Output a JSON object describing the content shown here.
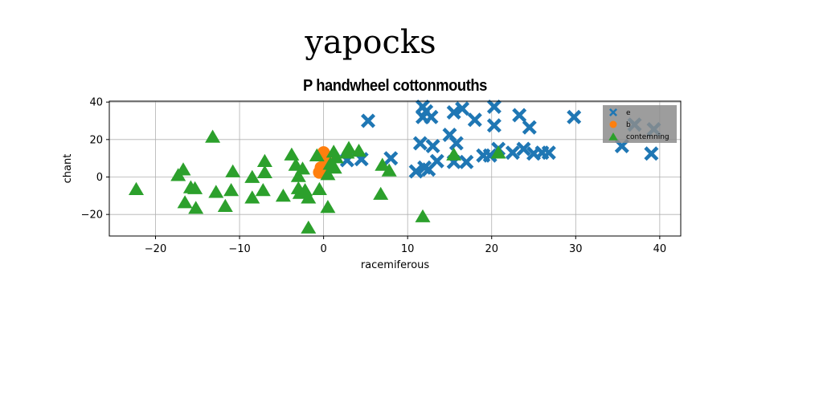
{
  "figure": {
    "suptitle": "yapocks"
  },
  "colors": {
    "e": "#1f77b4",
    "b": "#ff7f0e",
    "contemning": "#2ca02c",
    "grid": "#b0b0b0",
    "legend_bg": "#8c8c8c"
  },
  "chart_data": {
    "type": "scatter",
    "title": "P handwheel cottonmouths",
    "xlabel": "racemiferous",
    "ylabel": "chant",
    "xlim": [
      -25.5,
      42.5
    ],
    "ylim": [
      -31.5,
      40.5
    ],
    "xticks": [
      -20,
      -10,
      0,
      10,
      20,
      30,
      40
    ],
    "yticks": [
      -20,
      0,
      20,
      40
    ],
    "xtick_labels": [
      "−20",
      "−10",
      "0",
      "10",
      "20",
      "30",
      "40"
    ],
    "ytick_labels": [
      "−20",
      "0",
      "20",
      "40"
    ],
    "grid": true,
    "legend_position": "upper right",
    "series": [
      {
        "name": "e",
        "marker": "x-filled",
        "points": [
          [
            5.3,
            30
          ],
          [
            4.5,
            9.5
          ],
          [
            2.8,
            9
          ],
          [
            8,
            10
          ],
          [
            11,
            3
          ],
          [
            11.5,
            18
          ],
          [
            12,
            5
          ],
          [
            12.5,
            4
          ],
          [
            11.8,
            37.5
          ],
          [
            11.8,
            32
          ],
          [
            12.2,
            35
          ],
          [
            12.8,
            32
          ],
          [
            13,
            16.5
          ],
          [
            13.5,
            8.5
          ],
          [
            15,
            22.5
          ],
          [
            15.5,
            34.5
          ],
          [
            15.8,
            18
          ],
          [
            16.5,
            36.5
          ],
          [
            15.5,
            8
          ],
          [
            17,
            8
          ],
          [
            18,
            30.5
          ],
          [
            19,
            11.5
          ],
          [
            19.8,
            11.5
          ],
          [
            20.3,
            37.5
          ],
          [
            20.3,
            27.5
          ],
          [
            20.8,
            15
          ],
          [
            22.5,
            13
          ],
          [
            23.3,
            33
          ],
          [
            23.8,
            15
          ],
          [
            24.5,
            26.5
          ],
          [
            25,
            12.5
          ],
          [
            26,
            13
          ],
          [
            26.8,
            13
          ],
          [
            29.8,
            32
          ],
          [
            35.5,
            16.5
          ],
          [
            37,
            28
          ],
          [
            39,
            12.5
          ],
          [
            39.3,
            25.5
          ]
        ]
      },
      {
        "name": "b",
        "marker": "o",
        "points": [
          [
            0,
            13
          ],
          [
            -0.3,
            5
          ],
          [
            0.3,
            8.5
          ],
          [
            -0.5,
            2.5
          ]
        ]
      },
      {
        "name": "contemning",
        "marker": "triangle",
        "points": [
          [
            -22.3,
            -7
          ],
          [
            -17.3,
            0.5
          ],
          [
            -16.7,
            3.5
          ],
          [
            -15.8,
            -6
          ],
          [
            -16.5,
            -14
          ],
          [
            -15.3,
            -6.5
          ],
          [
            -15.2,
            -17
          ],
          [
            -13.2,
            21
          ],
          [
            -12.8,
            -8.5
          ],
          [
            -11.7,
            -16
          ],
          [
            -10.8,
            2.5
          ],
          [
            -11,
            -7.5
          ],
          [
            -8.5,
            -0.5
          ],
          [
            -8.5,
            -11.5
          ],
          [
            -7,
            8
          ],
          [
            -7,
            2
          ],
          [
            -7.2,
            -7.5
          ],
          [
            -4.8,
            -10.5
          ],
          [
            -3.8,
            11.5
          ],
          [
            -3.3,
            6
          ],
          [
            -3,
            0
          ],
          [
            -3,
            -6.5
          ],
          [
            -2.8,
            -9
          ],
          [
            -2.5,
            4
          ],
          [
            -2.2,
            -7.5
          ],
          [
            -1.8,
            -11.5
          ],
          [
            -1.8,
            -27.5
          ],
          [
            -0.8,
            11
          ],
          [
            -0.5,
            -7
          ],
          [
            0.5,
            -16.5
          ],
          [
            0.5,
            1
          ],
          [
            0.8,
            6.5
          ],
          [
            1.2,
            13
          ],
          [
            1.3,
            4.5
          ],
          [
            1.5,
            10
          ],
          [
            3,
            15
          ],
          [
            2.8,
            12.5
          ],
          [
            4.2,
            13.5
          ],
          [
            7,
            6
          ],
          [
            6.8,
            -9.5
          ],
          [
            7.8,
            3
          ],
          [
            11.8,
            -21.5
          ],
          [
            15.5,
            11.5
          ],
          [
            20.8,
            12.5
          ]
        ]
      }
    ]
  }
}
